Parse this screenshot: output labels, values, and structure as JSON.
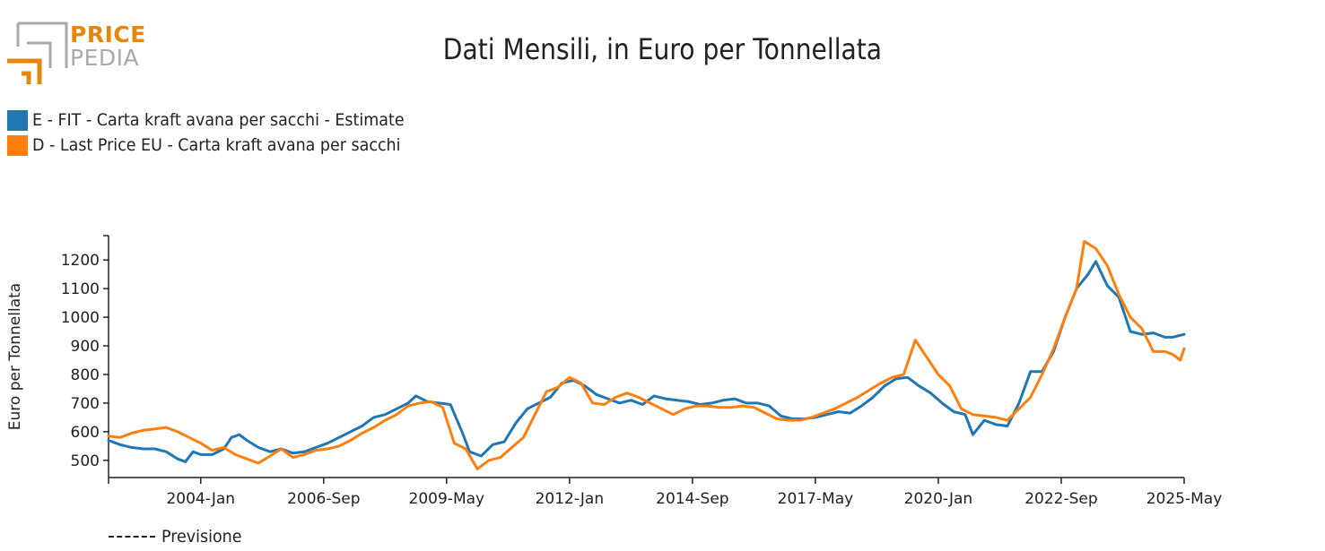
{
  "brand": {
    "line1": "PRICE",
    "line2": "PEDIA",
    "accent": "#e8860b",
    "gray": "#a9a9a9"
  },
  "legend": {
    "series1": "E - FIT - Carta kraft avana per sacchi - Estimate",
    "series2": "D - Last Price EU - Carta kraft avana per sacchi"
  },
  "forecast_label": "Previsione",
  "chart_data": {
    "type": "line",
    "title": "Dati Mensili, in Euro per Tonnellata",
    "xlabel": "",
    "ylabel": "Euro per Tonnellata",
    "x_start": "2002-01",
    "x_end": "2025-05",
    "xticks": [
      "2004-Jan",
      "2006-Sep",
      "2009-May",
      "2012-Jan",
      "2014-Sep",
      "2017-May",
      "2020-Jan",
      "2022-Sep",
      "2025-May"
    ],
    "ylim": [
      440,
      1285
    ],
    "yticks": [
      500,
      600,
      700,
      800,
      900,
      1000,
      1100,
      1200
    ],
    "grid": false,
    "legend_position": "top-left",
    "series": [
      {
        "name": "E - FIT - Carta kraft avana per sacchi - Estimate",
        "color": "#1f77b4",
        "points": [
          [
            "2002-01",
            570
          ],
          [
            "2002-04",
            555
          ],
          [
            "2002-07",
            545
          ],
          [
            "2002-10",
            540
          ],
          [
            "2003-01",
            540
          ],
          [
            "2003-04",
            530
          ],
          [
            "2003-07",
            505
          ],
          [
            "2003-09",
            495
          ],
          [
            "2003-11",
            530
          ],
          [
            "2004-01",
            520
          ],
          [
            "2004-04",
            520
          ],
          [
            "2004-07",
            540
          ],
          [
            "2004-09",
            580
          ],
          [
            "2004-11",
            590
          ],
          [
            "2005-01",
            570
          ],
          [
            "2005-04",
            545
          ],
          [
            "2005-07",
            530
          ],
          [
            "2005-10",
            540
          ],
          [
            "2006-01",
            525
          ],
          [
            "2006-04",
            530
          ],
          [
            "2006-07",
            545
          ],
          [
            "2006-10",
            560
          ],
          [
            "2007-01",
            580
          ],
          [
            "2007-04",
            600
          ],
          [
            "2007-07",
            620
          ],
          [
            "2007-10",
            650
          ],
          [
            "2008-01",
            660
          ],
          [
            "2008-04",
            680
          ],
          [
            "2008-07",
            700
          ],
          [
            "2008-09",
            725
          ],
          [
            "2008-12",
            705
          ],
          [
            "2009-03",
            700
          ],
          [
            "2009-06",
            695
          ],
          [
            "2009-09",
            600
          ],
          [
            "2009-11",
            530
          ],
          [
            "2010-02",
            515
          ],
          [
            "2010-05",
            555
          ],
          [
            "2010-08",
            565
          ],
          [
            "2010-11",
            630
          ],
          [
            "2011-02",
            680
          ],
          [
            "2011-05",
            700
          ],
          [
            "2011-08",
            720
          ],
          [
            "2011-11",
            770
          ],
          [
            "2012-02",
            780
          ],
          [
            "2012-05",
            760
          ],
          [
            "2012-08",
            730
          ],
          [
            "2012-11",
            715
          ],
          [
            "2013-02",
            700
          ],
          [
            "2013-05",
            710
          ],
          [
            "2013-08",
            695
          ],
          [
            "2013-11",
            725
          ],
          [
            "2014-02",
            715
          ],
          [
            "2014-05",
            710
          ],
          [
            "2014-08",
            705
          ],
          [
            "2014-11",
            695
          ],
          [
            "2015-02",
            700
          ],
          [
            "2015-05",
            710
          ],
          [
            "2015-08",
            715
          ],
          [
            "2015-11",
            700
          ],
          [
            "2016-02",
            700
          ],
          [
            "2016-05",
            690
          ],
          [
            "2016-08",
            655
          ],
          [
            "2016-11",
            645
          ],
          [
            "2017-02",
            645
          ],
          [
            "2017-05",
            650
          ],
          [
            "2017-08",
            660
          ],
          [
            "2017-11",
            670
          ],
          [
            "2018-02",
            665
          ],
          [
            "2018-05",
            690
          ],
          [
            "2018-08",
            720
          ],
          [
            "2018-11",
            760
          ],
          [
            "2019-02",
            785
          ],
          [
            "2019-05",
            790
          ],
          [
            "2019-08",
            760
          ],
          [
            "2019-11",
            735
          ],
          [
            "2020-02",
            700
          ],
          [
            "2020-05",
            670
          ],
          [
            "2020-08",
            660
          ],
          [
            "2020-10",
            590
          ],
          [
            "2021-01",
            640
          ],
          [
            "2021-04",
            625
          ],
          [
            "2021-07",
            620
          ],
          [
            "2021-10",
            700
          ],
          [
            "2022-01",
            810
          ],
          [
            "2022-04",
            810
          ],
          [
            "2022-07",
            880
          ],
          [
            "2022-10",
            1000
          ],
          [
            "2023-01",
            1100
          ],
          [
            "2023-04",
            1150
          ],
          [
            "2023-06",
            1195
          ],
          [
            "2023-09",
            1110
          ],
          [
            "2023-12",
            1070
          ],
          [
            "2024-03",
            950
          ],
          [
            "2024-06",
            940
          ],
          [
            "2024-09",
            945
          ],
          [
            "2024-12",
            930
          ],
          [
            "2025-02",
            930
          ],
          [
            "2025-05",
            940
          ]
        ]
      },
      {
        "name": "D - Last Price EU - Carta kraft avana per sacchi",
        "color": "#ff7f0e",
        "points": [
          [
            "2002-01",
            585
          ],
          [
            "2002-04",
            580
          ],
          [
            "2002-07",
            595
          ],
          [
            "2002-10",
            605
          ],
          [
            "2003-01",
            610
          ],
          [
            "2003-04",
            615
          ],
          [
            "2003-07",
            600
          ],
          [
            "2003-10",
            580
          ],
          [
            "2004-01",
            560
          ],
          [
            "2004-04",
            535
          ],
          [
            "2004-07",
            545
          ],
          [
            "2004-10",
            520
          ],
          [
            "2005-01",
            505
          ],
          [
            "2005-04",
            490
          ],
          [
            "2005-07",
            515
          ],
          [
            "2005-10",
            540
          ],
          [
            "2006-01",
            510
          ],
          [
            "2006-04",
            520
          ],
          [
            "2006-07",
            535
          ],
          [
            "2006-10",
            540
          ],
          [
            "2007-01",
            550
          ],
          [
            "2007-04",
            570
          ],
          [
            "2007-07",
            595
          ],
          [
            "2007-10",
            615
          ],
          [
            "2008-01",
            640
          ],
          [
            "2008-04",
            660
          ],
          [
            "2008-07",
            690
          ],
          [
            "2008-10",
            700
          ],
          [
            "2009-01",
            705
          ],
          [
            "2009-04",
            685
          ],
          [
            "2009-07",
            560
          ],
          [
            "2009-10",
            540
          ],
          [
            "2010-01",
            470
          ],
          [
            "2010-04",
            500
          ],
          [
            "2010-07",
            510
          ],
          [
            "2010-10",
            545
          ],
          [
            "2011-01",
            580
          ],
          [
            "2011-04",
            660
          ],
          [
            "2011-07",
            740
          ],
          [
            "2011-10",
            755
          ],
          [
            "2012-01",
            790
          ],
          [
            "2012-04",
            770
          ],
          [
            "2012-07",
            700
          ],
          [
            "2012-10",
            695
          ],
          [
            "2013-01",
            720
          ],
          [
            "2013-04",
            735
          ],
          [
            "2013-07",
            720
          ],
          [
            "2013-10",
            700
          ],
          [
            "2014-01",
            680
          ],
          [
            "2014-04",
            660
          ],
          [
            "2014-07",
            680
          ],
          [
            "2014-10",
            690
          ],
          [
            "2015-01",
            690
          ],
          [
            "2015-04",
            685
          ],
          [
            "2015-07",
            685
          ],
          [
            "2015-10",
            690
          ],
          [
            "2016-01",
            685
          ],
          [
            "2016-04",
            665
          ],
          [
            "2016-07",
            645
          ],
          [
            "2016-10",
            640
          ],
          [
            "2017-01",
            640
          ],
          [
            "2017-04",
            650
          ],
          [
            "2017-07",
            665
          ],
          [
            "2017-10",
            680
          ],
          [
            "2018-01",
            700
          ],
          [
            "2018-04",
            720
          ],
          [
            "2018-07",
            745
          ],
          [
            "2018-10",
            770
          ],
          [
            "2019-01",
            790
          ],
          [
            "2019-04",
            800
          ],
          [
            "2019-07",
            920
          ],
          [
            "2019-10",
            860
          ],
          [
            "2020-01",
            800
          ],
          [
            "2020-04",
            760
          ],
          [
            "2020-07",
            680
          ],
          [
            "2020-10",
            660
          ],
          [
            "2021-01",
            655
          ],
          [
            "2021-04",
            650
          ],
          [
            "2021-07",
            640
          ],
          [
            "2021-10",
            680
          ],
          [
            "2022-01",
            720
          ],
          [
            "2022-04",
            800
          ],
          [
            "2022-07",
            890
          ],
          [
            "2022-10",
            1000
          ],
          [
            "2023-01",
            1100
          ],
          [
            "2023-03",
            1265
          ],
          [
            "2023-06",
            1240
          ],
          [
            "2023-09",
            1180
          ],
          [
            "2023-12",
            1080
          ],
          [
            "2024-03",
            1000
          ],
          [
            "2024-06",
            960
          ],
          [
            "2024-09",
            880
          ],
          [
            "2024-12",
            880
          ],
          [
            "2025-02",
            870
          ],
          [
            "2025-04",
            850
          ],
          [
            "2025-05",
            890
          ]
        ]
      }
    ]
  }
}
